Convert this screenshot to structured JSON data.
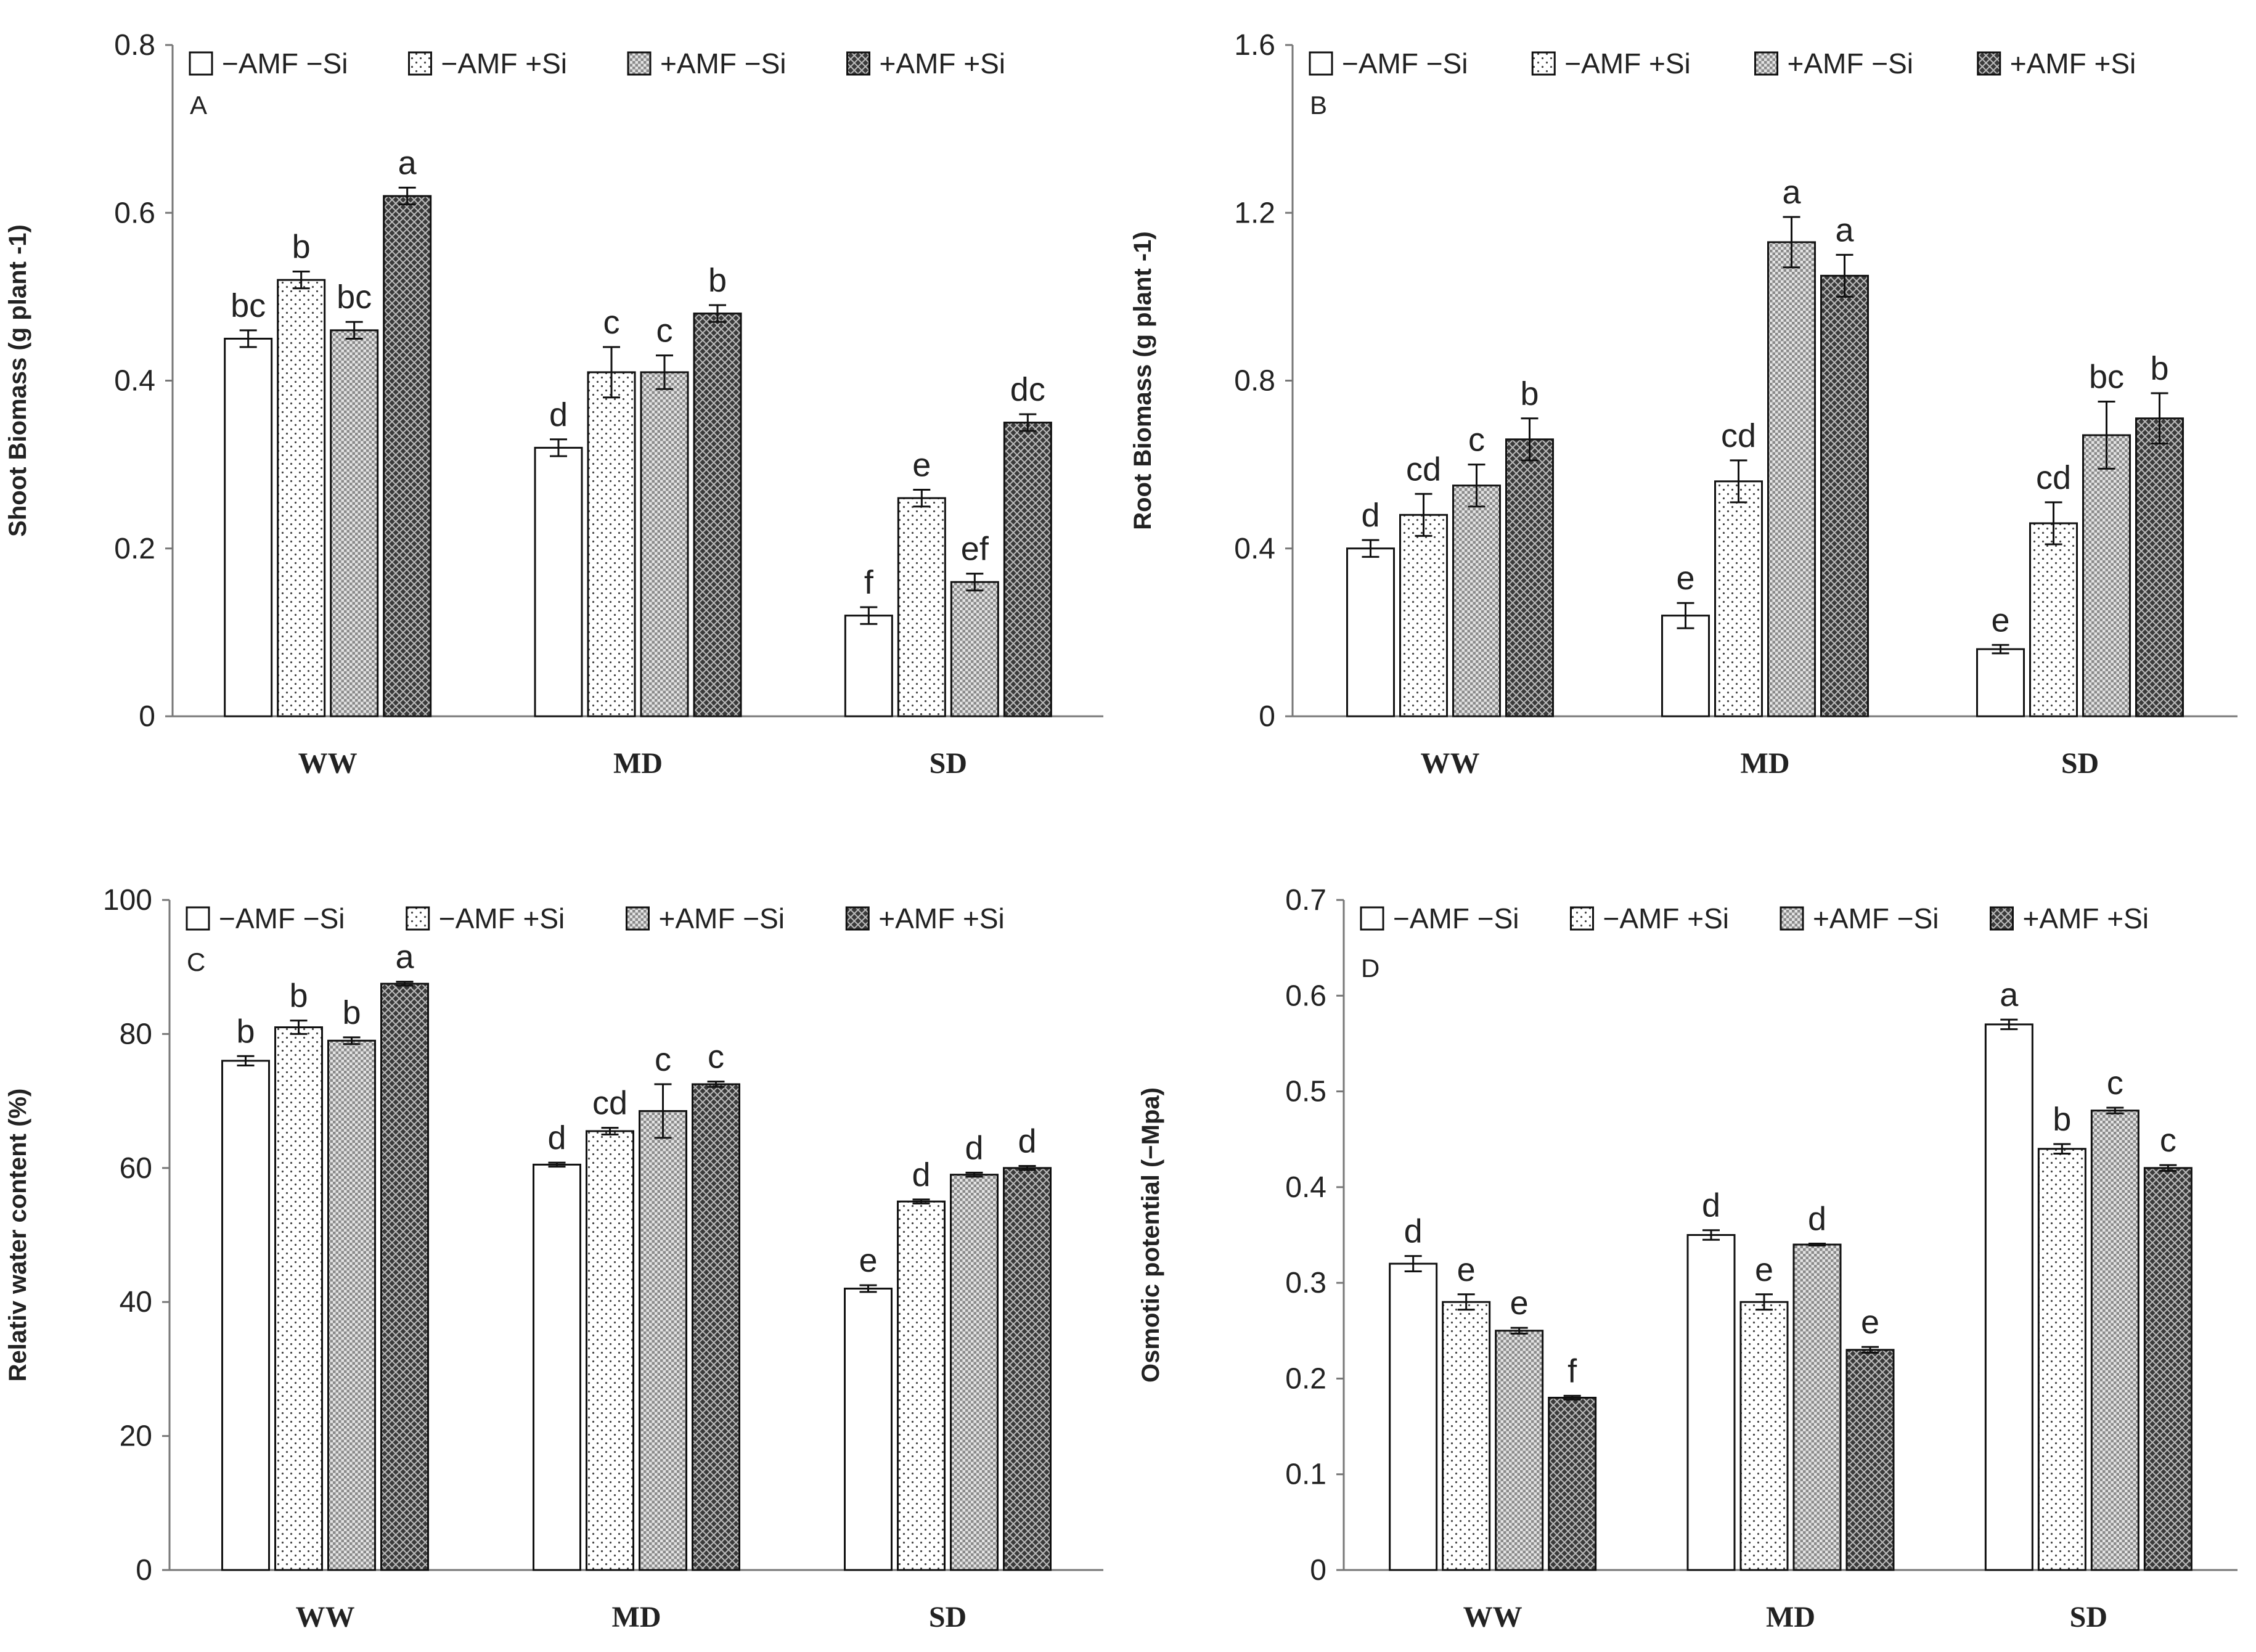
{
  "chart_data": [
    {
      "type": "bar",
      "panel": "A",
      "ylabel": "Shoot Biomass (g plant -1)",
      "ylim": [
        0,
        0.8
      ],
      "ytick_values": [
        0,
        0.2,
        0.4,
        0.6,
        0.8
      ],
      "yticks": [
        "0",
        "0.2",
        "0.4",
        "0.6",
        "0.8"
      ],
      "categories": [
        "WW",
        "MD",
        "SD"
      ],
      "legend": [
        "−AMF −Si",
        "−AMF +Si",
        "+AMF −Si",
        "+AMF +Si"
      ],
      "series": [
        {
          "name": "−AMF −Si",
          "values": [
            0.45,
            0.32,
            0.12
          ],
          "errors": [
            0.01,
            0.01,
            0.01
          ],
          "labels": [
            "bc",
            "d",
            "f"
          ]
        },
        {
          "name": "−AMF +Si",
          "values": [
            0.52,
            0.41,
            0.26
          ],
          "errors": [
            0.01,
            0.03,
            0.01
          ],
          "labels": [
            "b",
            "c",
            "e"
          ]
        },
        {
          "name": "+AMF −Si",
          "values": [
            0.46,
            0.41,
            0.16
          ],
          "errors": [
            0.01,
            0.02,
            0.01
          ],
          "labels": [
            "bc",
            "c",
            "ef"
          ]
        },
        {
          "name": "+AMF +Si",
          "values": [
            0.62,
            0.48,
            0.35
          ],
          "errors": [
            0.01,
            0.01,
            0.01
          ],
          "labels": [
            "a",
            "b",
            "dc"
          ]
        }
      ]
    },
    {
      "type": "bar",
      "panel": "B",
      "ylabel": "Root Biomass (g plant -1)",
      "ylim": [
        0,
        1.6
      ],
      "ytick_values": [
        0,
        0.4,
        0.8,
        1.2,
        1.6
      ],
      "yticks": [
        "0",
        "0.4",
        "0.8",
        "1.2",
        "1.6"
      ],
      "categories": [
        "WW",
        "MD",
        "SD"
      ],
      "legend": [
        "−AMF −Si",
        "−AMF +Si",
        "+AMF −Si",
        "+AMF +Si"
      ],
      "series": [
        {
          "name": "−AMF −Si",
          "values": [
            0.4,
            0.24,
            0.16
          ],
          "errors": [
            0.02,
            0.03,
            0.01
          ],
          "labels": [
            "d",
            "e",
            "e"
          ]
        },
        {
          "name": "−AMF +Si",
          "values": [
            0.48,
            0.56,
            0.46
          ],
          "errors": [
            0.05,
            0.05,
            0.05
          ],
          "labels": [
            "cd",
            "cd",
            "cd"
          ]
        },
        {
          "name": "+AMF −Si",
          "values": [
            0.55,
            1.13,
            0.67
          ],
          "errors": [
            0.05,
            0.06,
            0.08
          ],
          "labels": [
            "c",
            "a",
            "bc"
          ]
        },
        {
          "name": "+AMF +Si",
          "values": [
            0.66,
            1.05,
            0.71
          ],
          "errors": [
            0.05,
            0.05,
            0.06
          ],
          "labels": [
            "b",
            "a",
            "b"
          ]
        }
      ]
    },
    {
      "type": "bar",
      "panel": "C",
      "ylabel": "Relativ water content (%)",
      "ylim": [
        0,
        100
      ],
      "ytick_values": [
        0,
        20,
        40,
        60,
        80,
        100
      ],
      "yticks": [
        "0",
        "20",
        "40",
        "60",
        "80",
        "100"
      ],
      "categories": [
        "WW",
        "MD",
        "SD"
      ],
      "legend": [
        "−AMF −Si",
        "−AMF +Si",
        "+AMF −Si",
        "+AMF +Si"
      ],
      "series": [
        {
          "name": "−AMF −Si",
          "values": [
            76,
            60.5,
            42
          ],
          "errors": [
            0.7,
            0.3,
            0.5
          ],
          "labels": [
            "b",
            "d",
            "e"
          ]
        },
        {
          "name": "−AMF +Si",
          "values": [
            81,
            65.5,
            55
          ],
          "errors": [
            1.0,
            0.5,
            0.3
          ],
          "labels": [
            "b",
            "cd",
            "d"
          ]
        },
        {
          "name": "+AMF −Si",
          "values": [
            79,
            68.5,
            59
          ],
          "errors": [
            0.5,
            4.0,
            0.3
          ],
          "labels": [
            "b",
            "c",
            "d"
          ]
        },
        {
          "name": "+AMF +Si",
          "values": [
            87.5,
            72.5,
            60
          ],
          "errors": [
            0.3,
            0.4,
            0.3
          ],
          "labels": [
            "a",
            "c",
            "d"
          ]
        }
      ]
    },
    {
      "type": "bar",
      "panel": "D",
      "ylabel": "Osmotic potential (−Mpa)",
      "ylim": [
        0,
        0.7
      ],
      "ytick_values": [
        0,
        0.1,
        0.2,
        0.3,
        0.4,
        0.5,
        0.6,
        0.7
      ],
      "yticks": [
        "0",
        "0.1",
        "0.2",
        "0.3",
        "0.4",
        "0.5",
        "0.6",
        "0.7"
      ],
      "categories": [
        "WW",
        "MD",
        "SD"
      ],
      "legend": [
        "−AMF −Si",
        "−AMF +Si",
        "+AMF −Si",
        "+AMF +Si"
      ],
      "series": [
        {
          "name": "−AMF −Si",
          "values": [
            0.32,
            0.35,
            0.57
          ],
          "errors": [
            0.008,
            0.005,
            0.005
          ],
          "labels": [
            "d",
            "d",
            "a"
          ]
        },
        {
          "name": "−AMF +Si",
          "values": [
            0.28,
            0.28,
            0.44
          ],
          "errors": [
            0.008,
            0.008,
            0.005
          ],
          "labels": [
            "e",
            "e",
            "b"
          ]
        },
        {
          "name": "+AMF −Si",
          "values": [
            0.25,
            0.34,
            0.48
          ],
          "errors": [
            0.003,
            0.001,
            0.003
          ],
          "labels": [
            "e",
            "d",
            "c"
          ]
        },
        {
          "name": "+AMF +Si",
          "values": [
            0.18,
            0.23,
            0.42
          ],
          "errors": [
            0.002,
            0.003,
            0.003
          ],
          "labels": [
            "f",
            "e",
            "c"
          ]
        }
      ]
    }
  ]
}
